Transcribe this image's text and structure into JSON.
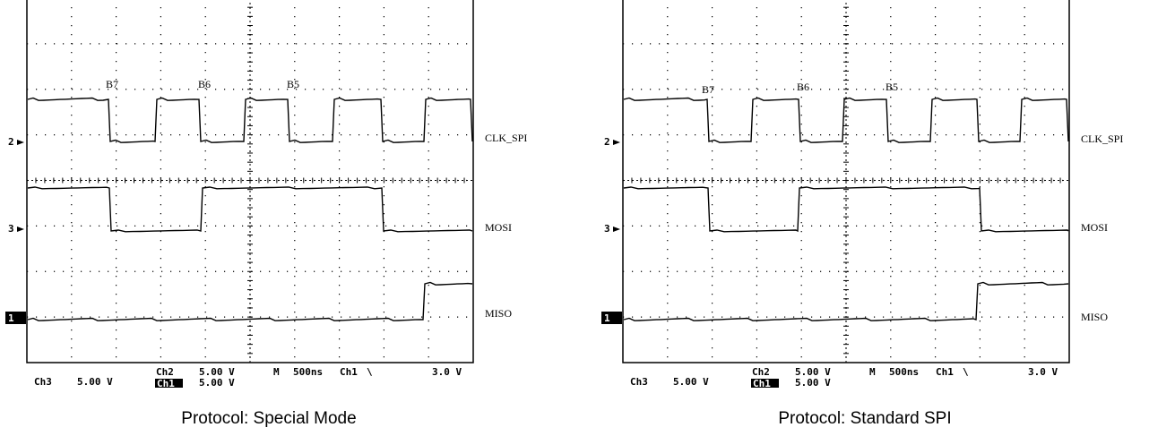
{
  "scopes": [
    {
      "caption": "Protocol: Special Mode",
      "trigger_marker": "1",
      "channels": [
        {
          "marker": "2",
          "label": "CLK_SPI"
        },
        {
          "marker": "3",
          "label": "MOSI"
        },
        {
          "marker": "1",
          "label": "MISO"
        }
      ],
      "bit_labels": [
        "B7",
        "B6",
        "B5"
      ],
      "readout": {
        "ch3": "Ch3",
        "ch3_volts": "5.00 V",
        "ch2": "Ch2",
        "ch2_volts": "5.00 V",
        "ch1_tag": "Ch1",
        "ch1_volts": "5.00 V",
        "timebase_label": "M",
        "timebase": "500ns",
        "trigger_source": "Ch1",
        "trigger_slope": "\\",
        "trigger_level": "3.0 V"
      }
    },
    {
      "caption": "Protocol: Standard SPI",
      "trigger_marker": "1",
      "channels": [
        {
          "marker": "2",
          "label": "CLK_SPI"
        },
        {
          "marker": "3",
          "label": "MOSI"
        },
        {
          "marker": "1",
          "label": "MISO"
        }
      ],
      "bit_labels": [
        "B7",
        "B6",
        "B5"
      ],
      "readout": {
        "ch3": "Ch3",
        "ch3_volts": "5.00 V",
        "ch2": "Ch2",
        "ch2_volts": "5.00 V",
        "ch1_tag": "Ch1",
        "ch1_volts": "5.00 V",
        "timebase_label": "M",
        "timebase": "500ns",
        "trigger_source": "Ch1",
        "trigger_slope": "\\",
        "trigger_level": "3.0 V"
      }
    }
  ]
}
